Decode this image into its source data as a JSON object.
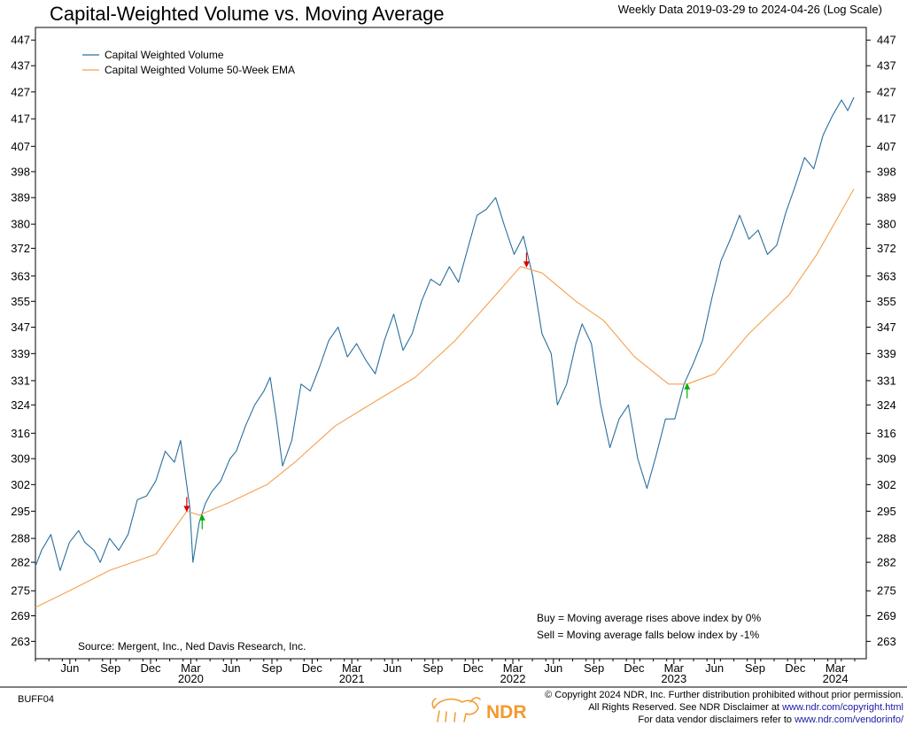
{
  "chart_data": {
    "type": "line",
    "title": "Capital-Weighted Volume vs. Moving Average",
    "subtitle": "Weekly Data 2019-03-29 to 2024-04-26 (Log Scale)",
    "y_scale": "log",
    "ylim": [
      259,
      452
    ],
    "xlim": [
      "2019-03-29",
      "2024-05-24"
    ],
    "y_ticks": [
      263,
      269,
      275,
      282,
      288,
      295,
      302,
      309,
      316,
      324,
      331,
      339,
      347,
      355,
      363,
      372,
      380,
      389,
      398,
      407,
      417,
      427,
      437,
      447
    ],
    "x_month_ticks": [
      {
        "label": "Jun",
        "date": "2019-06-15"
      },
      {
        "label": "Sep",
        "date": "2019-09-15"
      },
      {
        "label": "Dec",
        "date": "2019-12-15"
      },
      {
        "label": "Mar",
        "date": "2020-03-15"
      },
      {
        "label": "Jun",
        "date": "2020-06-15"
      },
      {
        "label": "Sep",
        "date": "2020-09-15"
      },
      {
        "label": "Dec",
        "date": "2020-12-15"
      },
      {
        "label": "Mar",
        "date": "2021-03-15"
      },
      {
        "label": "Jun",
        "date": "2021-06-15"
      },
      {
        "label": "Sep",
        "date": "2021-09-15"
      },
      {
        "label": "Dec",
        "date": "2021-12-15"
      },
      {
        "label": "Mar",
        "date": "2022-03-15"
      },
      {
        "label": "Jun",
        "date": "2022-06-15"
      },
      {
        "label": "Sep",
        "date": "2022-09-15"
      },
      {
        "label": "Dec",
        "date": "2022-12-15"
      },
      {
        "label": "Mar",
        "date": "2023-03-15"
      },
      {
        "label": "Jun",
        "date": "2023-06-15"
      },
      {
        "label": "Sep",
        "date": "2023-09-15"
      },
      {
        "label": "Dec",
        "date": "2023-12-15"
      },
      {
        "label": "Mar",
        "date": "2024-03-15"
      }
    ],
    "x_year_labels": [
      {
        "label": "2020",
        "date": "2020-03-15"
      },
      {
        "label": "2021",
        "date": "2021-03-15"
      },
      {
        "label": "2022",
        "date": "2022-03-15"
      },
      {
        "label": "2023",
        "date": "2023-03-15"
      },
      {
        "label": "2024",
        "date": "2024-03-15"
      }
    ],
    "series": [
      {
        "name": "Capital Weighted Volume",
        "color": "#2a6f9e",
        "points": [
          [
            "2019-03-29",
            281
          ],
          [
            "2019-04-12",
            285
          ],
          [
            "2019-05-03",
            289
          ],
          [
            "2019-05-24",
            280
          ],
          [
            "2019-06-14",
            287
          ],
          [
            "2019-07-05",
            290
          ],
          [
            "2019-07-19",
            287
          ],
          [
            "2019-08-09",
            285
          ],
          [
            "2019-08-23",
            282
          ],
          [
            "2019-09-13",
            288
          ],
          [
            "2019-10-04",
            285
          ],
          [
            "2019-10-25",
            289
          ],
          [
            "2019-11-15",
            298
          ],
          [
            "2019-12-06",
            299
          ],
          [
            "2019-12-27",
            303
          ],
          [
            "2020-01-17",
            311
          ],
          [
            "2020-02-07",
            308
          ],
          [
            "2020-02-21",
            314
          ],
          [
            "2020-03-13",
            296
          ],
          [
            "2020-03-20",
            282
          ],
          [
            "2020-04-03",
            292
          ],
          [
            "2020-04-17",
            297
          ],
          [
            "2020-05-01",
            300
          ],
          [
            "2020-05-22",
            303
          ],
          [
            "2020-06-12",
            309
          ],
          [
            "2020-06-26",
            311
          ],
          [
            "2020-07-17",
            318
          ],
          [
            "2020-08-07",
            324
          ],
          [
            "2020-08-28",
            328
          ],
          [
            "2020-09-11",
            332
          ],
          [
            "2020-09-25",
            320
          ],
          [
            "2020-10-09",
            307
          ],
          [
            "2020-10-30",
            314
          ],
          [
            "2020-11-20",
            330
          ],
          [
            "2020-12-11",
            328
          ],
          [
            "2021-01-01",
            335
          ],
          [
            "2021-01-22",
            343
          ],
          [
            "2021-02-12",
            347
          ],
          [
            "2021-03-05",
            338
          ],
          [
            "2021-03-26",
            342
          ],
          [
            "2021-04-16",
            337
          ],
          [
            "2021-05-07",
            333
          ],
          [
            "2021-05-28",
            343
          ],
          [
            "2021-06-18",
            351
          ],
          [
            "2021-07-09",
            340
          ],
          [
            "2021-07-30",
            345
          ],
          [
            "2021-08-20",
            355
          ],
          [
            "2021-09-10",
            362
          ],
          [
            "2021-10-01",
            360
          ],
          [
            "2021-10-22",
            366
          ],
          [
            "2021-11-12",
            361
          ],
          [
            "2021-12-03",
            372
          ],
          [
            "2021-12-24",
            383
          ],
          [
            "2022-01-14",
            385
          ],
          [
            "2022-02-04",
            389
          ],
          [
            "2022-02-25",
            379
          ],
          [
            "2022-03-18",
            370
          ],
          [
            "2022-04-08",
            376
          ],
          [
            "2022-04-29",
            363
          ],
          [
            "2022-05-20",
            345
          ],
          [
            "2022-06-10",
            339
          ],
          [
            "2022-06-24",
            324
          ],
          [
            "2022-07-15",
            330
          ],
          [
            "2022-08-05",
            342
          ],
          [
            "2022-08-19",
            348
          ],
          [
            "2022-09-09",
            342
          ],
          [
            "2022-09-30",
            324
          ],
          [
            "2022-10-21",
            312
          ],
          [
            "2022-11-11",
            320
          ],
          [
            "2022-12-02",
            324
          ],
          [
            "2022-12-23",
            309
          ],
          [
            "2023-01-13",
            301
          ],
          [
            "2023-02-03",
            310
          ],
          [
            "2023-02-24",
            320
          ],
          [
            "2023-03-17",
            320
          ],
          [
            "2023-04-07",
            330
          ],
          [
            "2023-04-28",
            336
          ],
          [
            "2023-05-19",
            343
          ],
          [
            "2023-06-09",
            356
          ],
          [
            "2023-06-30",
            368
          ],
          [
            "2023-07-21",
            375
          ],
          [
            "2023-08-11",
            383
          ],
          [
            "2023-09-01",
            375
          ],
          [
            "2023-09-22",
            378
          ],
          [
            "2023-10-13",
            370
          ],
          [
            "2023-11-03",
            373
          ],
          [
            "2023-11-24",
            384
          ],
          [
            "2023-12-15",
            393
          ],
          [
            "2024-01-05",
            403
          ],
          [
            "2024-01-26",
            399
          ],
          [
            "2024-02-16",
            411
          ],
          [
            "2024-03-08",
            418
          ],
          [
            "2024-03-29",
            424
          ],
          [
            "2024-04-12",
            420
          ],
          [
            "2024-04-26",
            425
          ]
        ]
      },
      {
        "name": "Capital Weighted Volume 50-Week EMA",
        "color": "#f5a04f",
        "points": [
          [
            "2019-03-29",
            271
          ],
          [
            "2019-06-14",
            275
          ],
          [
            "2019-09-13",
            280
          ],
          [
            "2019-12-27",
            284
          ],
          [
            "2020-03-06",
            295
          ],
          [
            "2020-04-03",
            294
          ],
          [
            "2020-06-05",
            297
          ],
          [
            "2020-09-04",
            302
          ],
          [
            "2020-11-06",
            308
          ],
          [
            "2021-02-05",
            318
          ],
          [
            "2021-05-07",
            325
          ],
          [
            "2021-08-06",
            332
          ],
          [
            "2021-11-05",
            343
          ],
          [
            "2022-02-04",
            357
          ],
          [
            "2022-04-01",
            366
          ],
          [
            "2022-05-20",
            364
          ],
          [
            "2022-08-05",
            355
          ],
          [
            "2022-10-07",
            349
          ],
          [
            "2022-12-16",
            338
          ],
          [
            "2023-03-03",
            330
          ],
          [
            "2023-04-14",
            330
          ],
          [
            "2023-06-16",
            333
          ],
          [
            "2023-09-01",
            345
          ],
          [
            "2023-12-01",
            357
          ],
          [
            "2024-02-02",
            370
          ],
          [
            "2024-04-26",
            392
          ]
        ]
      }
    ],
    "signals": [
      {
        "type": "sell",
        "date": "2020-03-06",
        "value": 295
      },
      {
        "type": "buy",
        "date": "2020-04-10",
        "value": 294
      },
      {
        "type": "sell",
        "date": "2022-04-15",
        "value": 366
      },
      {
        "type": "buy",
        "date": "2023-04-14",
        "value": 330
      }
    ],
    "signal_colors": {
      "sell": "#e00000",
      "buy": "#00b000"
    },
    "rules": {
      "buy": "Buy = Moving average rises above index by 0%",
      "sell": "Sell = Moving average falls below index by -1%"
    },
    "source": "Source:   Mergent, Inc., Ned Davis Research, Inc."
  },
  "footer": {
    "code": "BUFF04",
    "logo_text": "NDR",
    "copyright": "© Copyright 2024 NDR, Inc. Further distribution prohibited without prior permission.",
    "rights_prefix": "All Rights Reserved. See NDR Disclaimer at ",
    "rights_link": "www.ndr.com/copyright.html",
    "vendor_prefix": "For data vendor disclaimers refer to ",
    "vendor_link": "www.ndr.com/vendorinfo/"
  },
  "colors": {
    "brand": "#f39a2e",
    "link": "#1a1aa6"
  }
}
